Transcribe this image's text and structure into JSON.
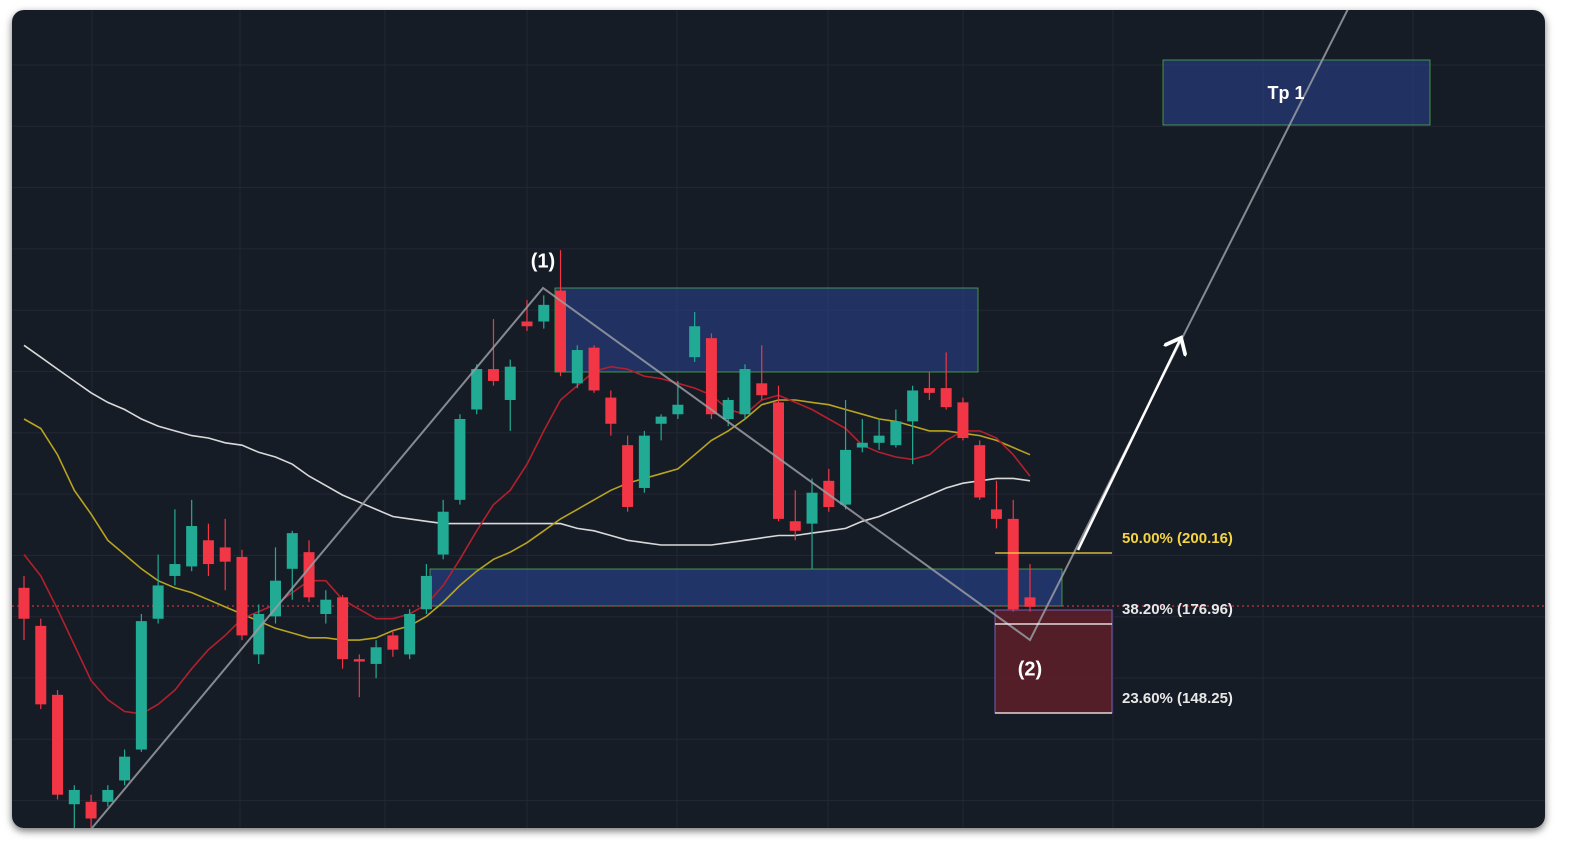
{
  "chart_data": {
    "type": "candlestick",
    "ylim": [
      84,
      428
    ],
    "candles": {
      "open": [
        185,
        169,
        140,
        94,
        95,
        95,
        104,
        117,
        172,
        190,
        194,
        205,
        202,
        198,
        157,
        173,
        193,
        200,
        174,
        181,
        155,
        153,
        165,
        157,
        176,
        199,
        222,
        260,
        277,
        264,
        297,
        297,
        310,
        271,
        286,
        265,
        245,
        227,
        254,
        258,
        282,
        290,
        256,
        258,
        271,
        263,
        213,
        212,
        230,
        220,
        244,
        246,
        245,
        255,
        269,
        269,
        263,
        245,
        218,
        214,
        181
      ],
      "high": [
        190,
        172,
        142,
        102,
        98,
        102,
        117,
        174,
        199,
        218,
        222,
        212,
        214,
        201,
        178,
        202,
        209,
        205,
        184,
        182,
        157,
        163,
        167,
        176,
        195,
        222,
        258,
        279,
        298,
        281,
        306,
        308,
        327,
        287,
        287,
        268,
        249,
        251,
        258,
        272,
        301,
        292,
        265,
        279,
        287,
        270,
        226,
        231,
        235,
        264,
        256,
        256,
        260,
        270,
        276,
        284,
        265,
        247,
        230,
        222,
        195
      ],
      "low": [
        163,
        134,
        96,
        84,
        84,
        93,
        102,
        116,
        170,
        186,
        192,
        190,
        184,
        163,
        153,
        170,
        180,
        179,
        170,
        151,
        139,
        147,
        156,
        155,
        174,
        197,
        220,
        258,
        270,
        251,
        293,
        294,
        274,
        269,
        267,
        249,
        217,
        225,
        247,
        256,
        280,
        256,
        253,
        256,
        264,
        213,
        205,
        193,
        217,
        218,
        242,
        243,
        244,
        237,
        264,
        260,
        247,
        222,
        210,
        175,
        175
      ],
      "close": [
        172,
        136,
        98,
        100,
        88,
        100,
        114,
        171,
        186,
        195,
        211,
        195,
        196,
        165,
        174,
        188,
        208,
        181,
        180,
        155,
        154,
        160,
        159,
        174,
        190,
        217,
        256,
        277,
        272,
        278,
        295,
        304,
        276,
        285,
        268,
        254,
        219,
        249,
        257,
        262,
        295,
        258,
        264,
        277,
        266,
        214,
        209,
        225,
        219,
        243,
        246,
        249,
        255,
        268,
        267,
        261,
        248,
        223,
        214,
        176,
        177
      ],
      "up_color": "#22ab94",
      "down_color": "#f23645"
    },
    "series": [
      {
        "color": "#d9d9d9",
        "values": [
          287,
          282,
          277,
          272,
          267,
          263,
          260,
          256,
          253,
          251,
          249,
          248,
          246,
          245,
          242,
          240,
          237,
          232,
          228,
          224,
          221,
          218,
          215,
          214,
          213,
          212,
          212,
          212,
          212,
          212,
          212,
          212,
          212,
          210,
          209,
          207,
          205,
          204,
          203,
          203,
          203,
          203,
          204,
          205,
          206,
          207,
          207,
          208,
          209,
          210,
          213,
          215,
          218,
          221,
          224,
          227,
          229,
          230,
          231,
          231,
          230
        ]
      },
      {
        "color": "#b9a41f",
        "values": [
          256,
          252,
          241,
          226,
          216,
          205,
          199,
          193,
          188,
          185,
          183,
          180,
          177,
          174,
          171,
          168,
          166,
          164,
          164,
          163,
          163,
          164,
          167,
          169,
          173,
          179,
          186,
          192,
          197,
          200,
          204,
          209,
          214,
          218,
          222,
          226,
          229,
          231,
          233,
          235,
          241,
          247,
          251,
          256,
          262,
          264,
          264,
          263,
          262,
          260,
          258,
          256,
          255,
          253,
          251,
          251,
          250,
          249,
          247,
          244,
          241
        ]
      },
      {
        "color": "#b3202d",
        "values": [
          199,
          190,
          176,
          161,
          146,
          138,
          133,
          132,
          136,
          142,
          151,
          159,
          165,
          172,
          175,
          178,
          183,
          188,
          188,
          180,
          176,
          172,
          172,
          174,
          178,
          186,
          197,
          209,
          220,
          226,
          237,
          251,
          264,
          270,
          276,
          278,
          277,
          274,
          273,
          271,
          269,
          266,
          260,
          258,
          264,
          266,
          263,
          260,
          256,
          252,
          245,
          242,
          240,
          239,
          241,
          247,
          251,
          251,
          248,
          241,
          232
        ]
      }
    ],
    "annotations": [
      "(1)",
      "(2)",
      "Tp 1",
      "50.00% (200.16)",
      "38.20% (176.96)",
      "23.60% (148.25)"
    ],
    "grid": true
  }
}
